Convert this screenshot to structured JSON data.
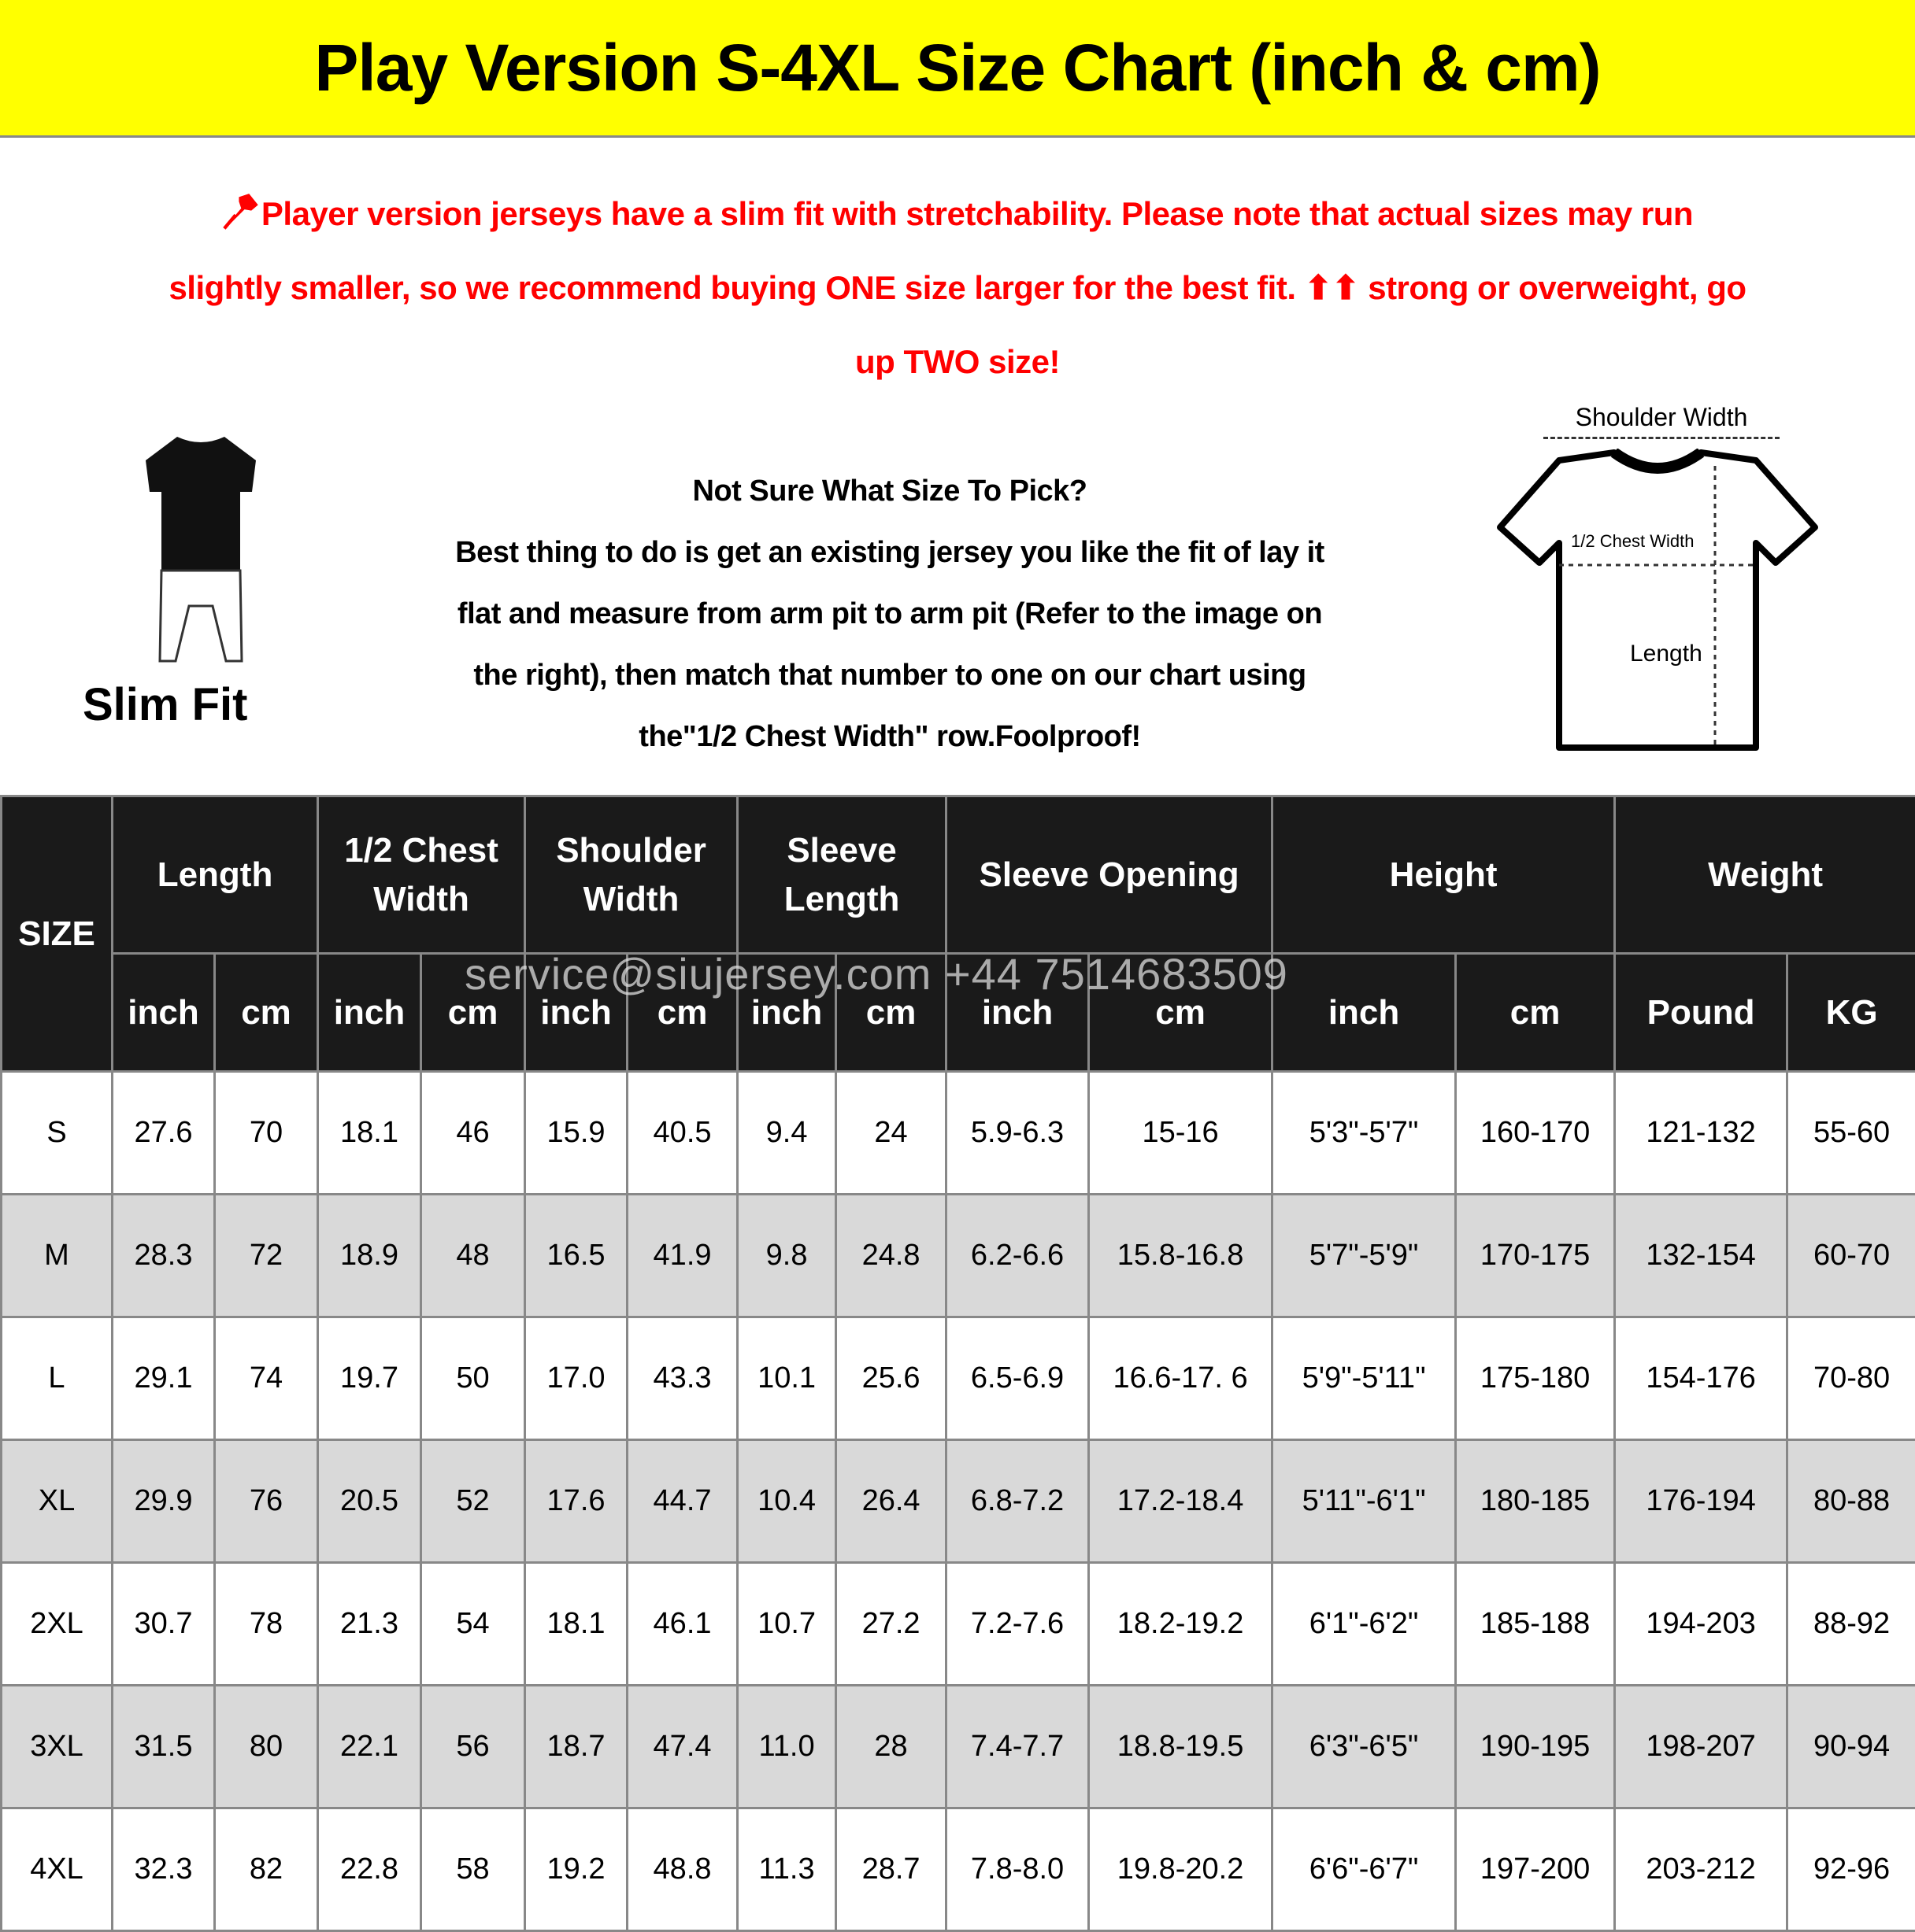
{
  "title": "Play Version S-4XL Size Chart (inch & cm)",
  "notice": {
    "icon": "pushpin-icon",
    "lines": [
      "Player version jerseys have a slim fit with stretchability. Please note that actual sizes may run",
      "slightly smaller, so we recommend buying ONE size larger for the best fit. ⬆⬆ strong or overweight, go",
      "up TWO size!"
    ],
    "color": "#ff0000"
  },
  "fit_label": "Slim Fit",
  "advice": {
    "lines": [
      "Not Sure What Size To Pick?",
      "Best thing to do is get an existing jersey you like the fit of lay it",
      "flat and measure from arm pit to arm pit (Refer to the image on",
      "the right), then match that number to one on our chart using",
      "the\"1/2 Chest Width\" row.Foolproof!"
    ]
  },
  "diagram": {
    "shoulder": "Shoulder Width",
    "chest": "1/2 Chest Width",
    "length": "Length"
  },
  "watermark": "service@siujersey.com   +44 7514683509",
  "table": {
    "size_header": "SIZE",
    "groups": [
      "Length",
      "1/2 Chest Width",
      "Shoulder Width",
      "Sleeve Length",
      "Sleeve Opening",
      "Height",
      "Weight"
    ],
    "units": [
      "inch",
      "cm",
      "inch",
      "cm",
      "inch",
      "cm",
      "inch",
      "cm",
      "inch",
      "cm",
      "inch",
      "cm",
      "Pound",
      "KG"
    ],
    "rows": [
      [
        "S",
        "27.6",
        "70",
        "18.1",
        "46",
        "15.9",
        "40.5",
        "9.4",
        "24",
        "5.9-6.3",
        "15-16",
        "5'3\"-5'7\"",
        "160-170",
        "121-132",
        "55-60"
      ],
      [
        "M",
        "28.3",
        "72",
        "18.9",
        "48",
        "16.5",
        "41.9",
        "9.8",
        "24.8",
        "6.2-6.6",
        "15.8-16.8",
        "5'7\"-5'9\"",
        "170-175",
        "132-154",
        "60-70"
      ],
      [
        "L",
        "29.1",
        "74",
        "19.7",
        "50",
        "17.0",
        "43.3",
        "10.1",
        "25.6",
        "6.5-6.9",
        "16.6-17. 6",
        "5'9\"-5'11\"",
        "175-180",
        "154-176",
        "70-80"
      ],
      [
        "XL",
        "29.9",
        "76",
        "20.5",
        "52",
        "17.6",
        "44.7",
        "10.4",
        "26.4",
        "6.8-7.2",
        "17.2-18.4",
        "5'11\"-6'1\"",
        "180-185",
        "176-194",
        "80-88"
      ],
      [
        "2XL",
        "30.7",
        "78",
        "21.3",
        "54",
        "18.1",
        "46.1",
        "10.7",
        "27.2",
        "7.2-7.6",
        "18.2-19.2",
        "6'1\"-6'2\"",
        "185-188",
        "194-203",
        "88-92"
      ],
      [
        "3XL",
        "31.5",
        "80",
        "22.1",
        "56",
        "18.7",
        "47.4",
        "11.0",
        "28",
        "7.4-7.7",
        "18.8-19.5",
        "6'3\"-6'5\"",
        "190-195",
        "198-207",
        "90-94"
      ],
      [
        "4XL",
        "32.3",
        "82",
        "22.8",
        "58",
        "19.2",
        "48.8",
        "11.3",
        "28.7",
        "7.8-8.0",
        "19.8-20.2",
        "6'6\"-6'7\"",
        "197-200",
        "203-212",
        "92-96"
      ]
    ]
  }
}
